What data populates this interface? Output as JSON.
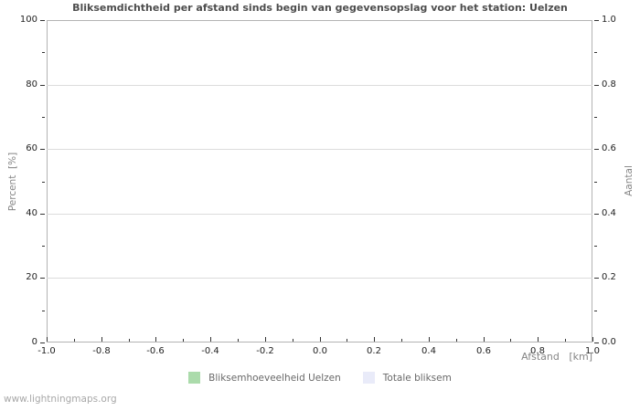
{
  "page": {
    "watermark": "www.lightningmaps.org"
  },
  "chart_data": {
    "type": "bar",
    "title": "Bliksemdichtheid per afstand sinds begin van gegevensopslag voor het station: Uelzen",
    "xlabel": "Afstand   [km]",
    "ylabel_left": "Percent  [%]",
    "ylabel_right": "Aantal",
    "xlim": [
      -1.0,
      1.0
    ],
    "ylim_left": [
      0,
      100
    ],
    "ylim_right": [
      0.0,
      1.0
    ],
    "x_major_ticks": [
      -1.0,
      -0.8,
      -0.6,
      -0.4,
      -0.2,
      0.0,
      0.2,
      0.4,
      0.6,
      0.8,
      1.0
    ],
    "x_major_tick_labels": [
      "-1.0",
      "-0.8",
      "-0.6",
      "-0.4",
      "-0.2",
      "0.0",
      "0.2",
      "0.4",
      "0.6",
      "0.8",
      "1.0"
    ],
    "x_minor_step": 0.1,
    "y_left_major_ticks": [
      0,
      20,
      40,
      60,
      80,
      100
    ],
    "y_left_major_tick_labels": [
      "0",
      "20",
      "40",
      "60",
      "80",
      "100"
    ],
    "y_left_minor_step": 10,
    "y_right_major_ticks": [
      0.0,
      0.2,
      0.4,
      0.6,
      0.8,
      1.0
    ],
    "y_right_major_tick_labels": [
      "0.0",
      "0.2",
      "0.4",
      "0.6",
      "0.8",
      "1.0"
    ],
    "y_right_minor_step": 0.1,
    "grid": "horizontal-major-only",
    "legend_position": "bottom-center",
    "series": [
      {
        "name": "Bliksemhoeveelheid Uelzen",
        "color": "#abdbab",
        "values": []
      },
      {
        "name": "Totale bliksem",
        "color": "#e9ebf9",
        "values": []
      }
    ],
    "note": "empty chart: no data points plotted"
  },
  "colors": {
    "title": "#4d4d4d",
    "tick_label": "#222222",
    "axis_title": "#858585",
    "plot_border": "#b3b3b3",
    "gridline": "#dcdcdc",
    "tick_mark": "#333333",
    "legend_text": "#686868",
    "watermark": "#a8a8a8",
    "series_green": "#abdbab",
    "series_lavender": "#e9ebf9"
  }
}
